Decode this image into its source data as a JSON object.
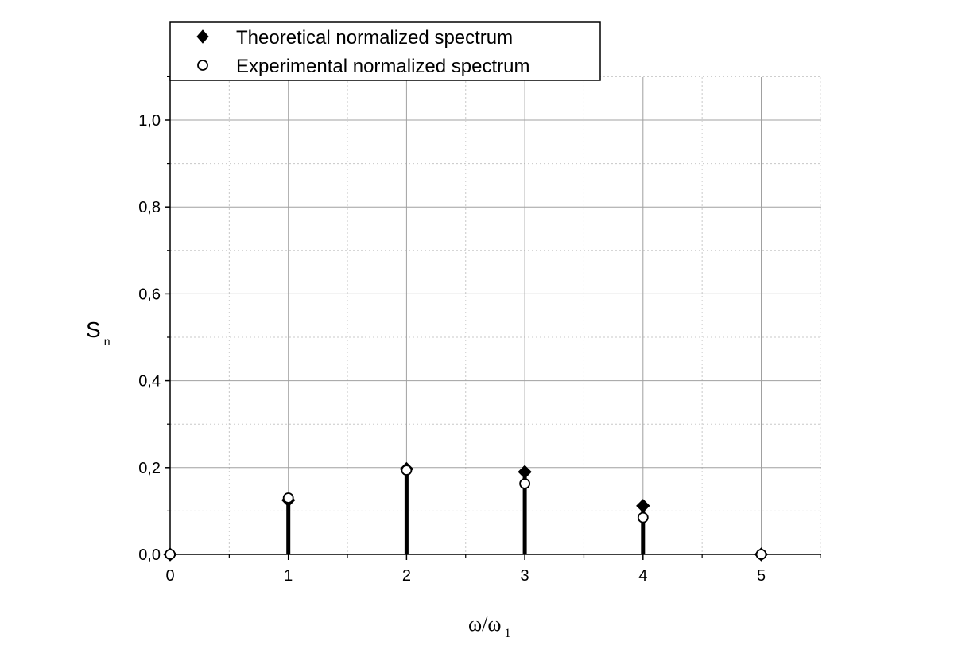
{
  "chart_data": {
    "type": "stem",
    "x_label": {
      "main": "ω/ω",
      "sub": "1"
    },
    "y_label": {
      "main": "S",
      "sub": "n"
    },
    "xlim": [
      0,
      5.5
    ],
    "ylim": [
      0,
      1.1
    ],
    "x_ticks": [
      0,
      1,
      2,
      3,
      4,
      5
    ],
    "x_tick_labels": [
      "0",
      "1",
      "2",
      "3",
      "4",
      "5"
    ],
    "y_ticks": [
      0,
      0.2,
      0.4,
      0.6,
      0.8,
      1.0
    ],
    "y_tick_labels": [
      "0,0",
      "0,2",
      "0,4",
      "0,6",
      "0,8",
      "1,0"
    ],
    "grid": true,
    "legend_position": "top-left",
    "series": [
      {
        "name": "Theoretical normalized spectrum",
        "marker": "diamond-filled",
        "color": "#000000",
        "x": [
          0,
          1,
          2,
          3,
          4,
          5
        ],
        "y": [
          0,
          0.125,
          0.197,
          0.19,
          0.112,
          0
        ]
      },
      {
        "name": "Experimental normalized spectrum",
        "marker": "circle-open",
        "color": "#000000",
        "x": [
          0,
          1,
          2,
          3,
          4,
          5
        ],
        "y": [
          0,
          0.13,
          0.194,
          0.163,
          0.085,
          0
        ]
      }
    ]
  }
}
